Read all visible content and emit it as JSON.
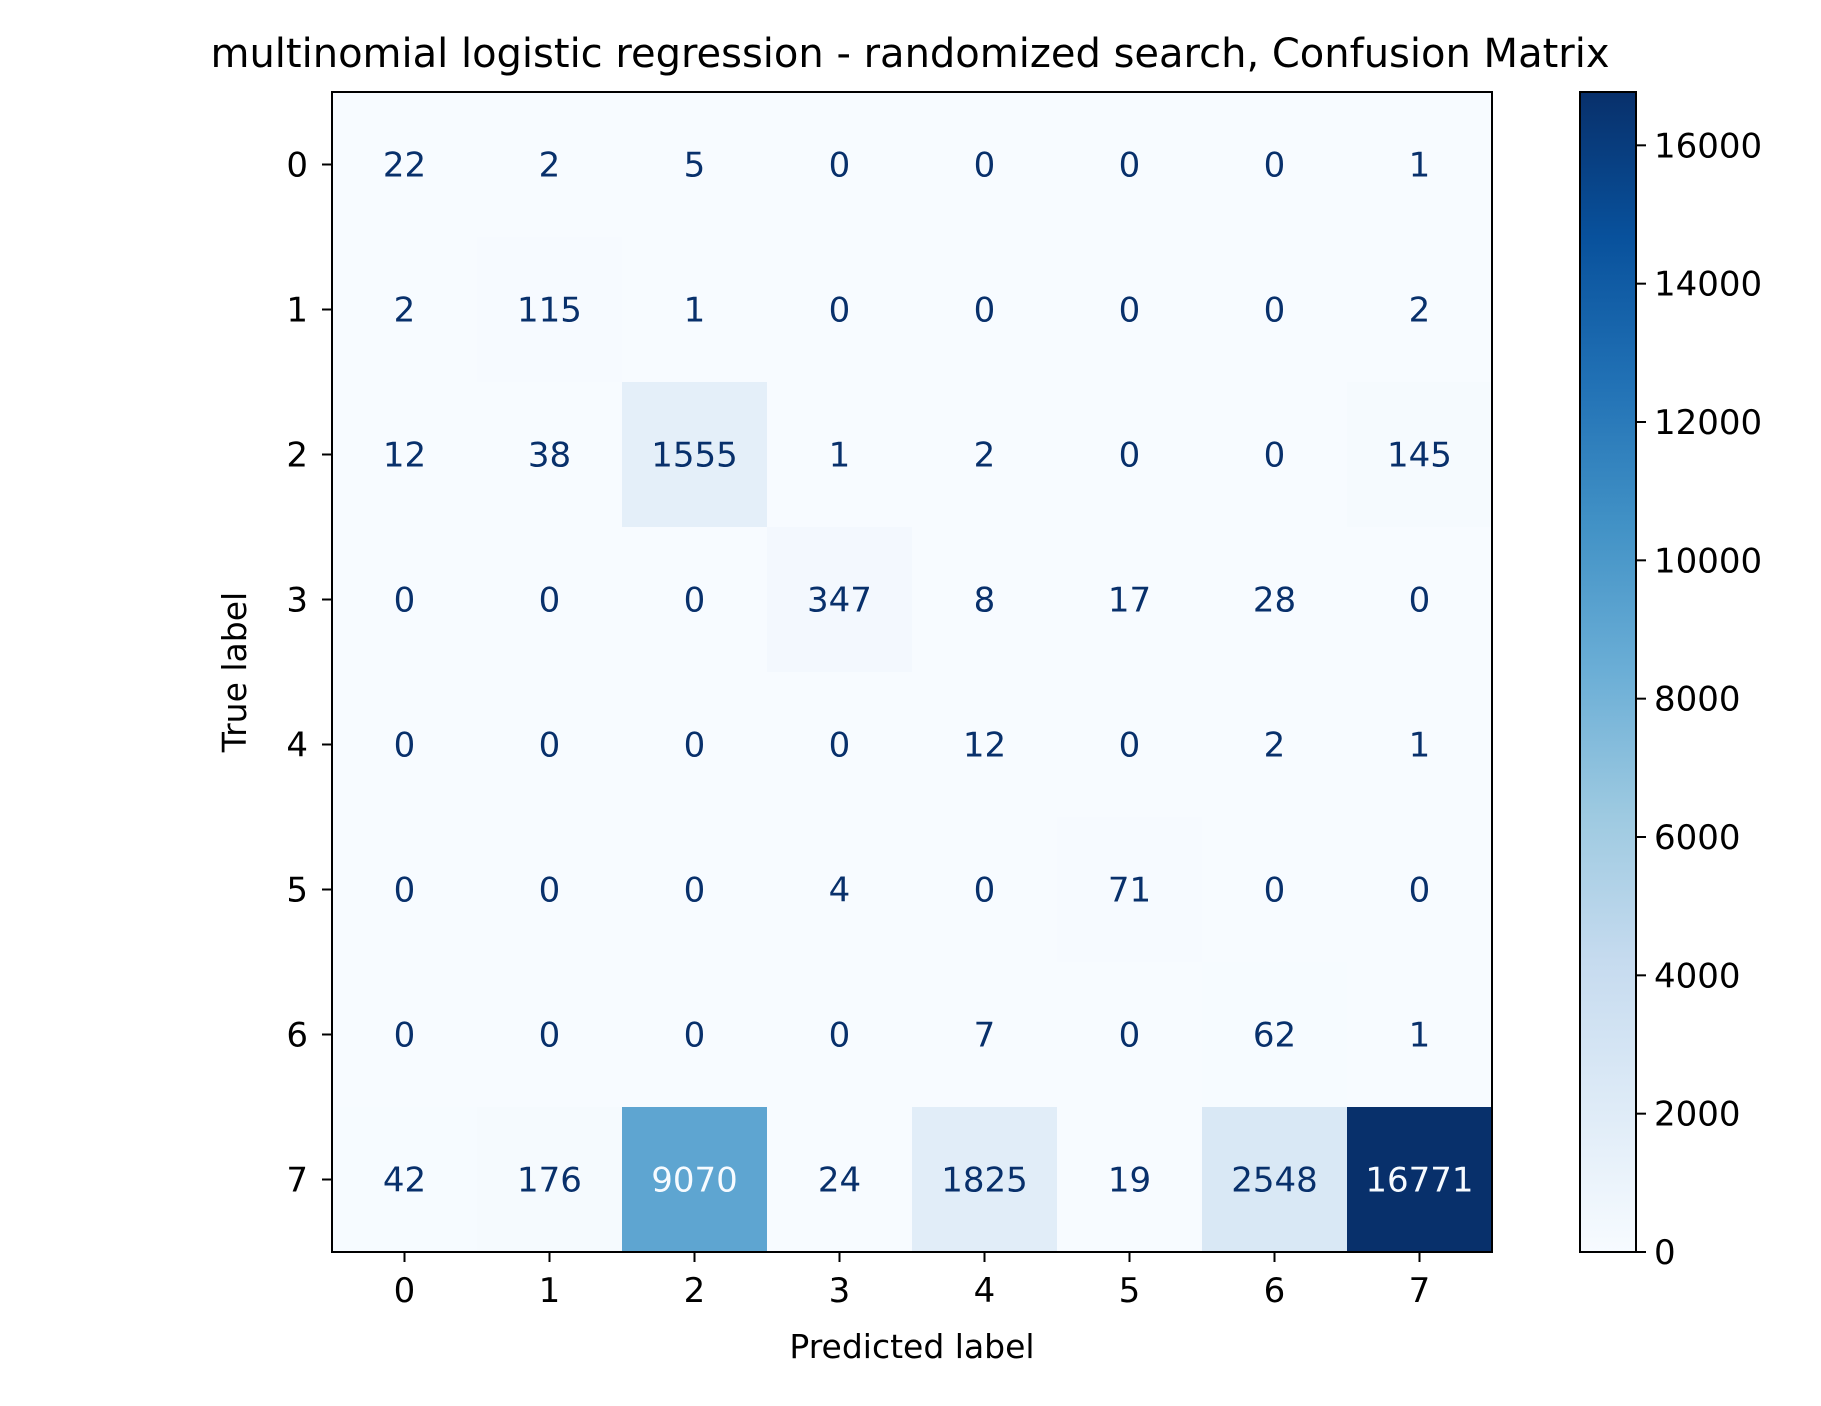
{
  "chart_data": {
    "type": "heatmap",
    "title": "multinomial logistic regression - randomized search, Confusion Matrix",
    "xlabel": "Predicted label",
    "ylabel": "True label",
    "x_categories": [
      "0",
      "1",
      "2",
      "3",
      "4",
      "5",
      "6",
      "7"
    ],
    "y_categories": [
      "0",
      "1",
      "2",
      "3",
      "4",
      "5",
      "6",
      "7"
    ],
    "values": [
      [
        22,
        2,
        5,
        0,
        0,
        0,
        0,
        1
      ],
      [
        2,
        115,
        1,
        0,
        0,
        0,
        0,
        2
      ],
      [
        12,
        38,
        1555,
        1,
        2,
        0,
        0,
        145
      ],
      [
        0,
        0,
        0,
        347,
        8,
        17,
        28,
        0
      ],
      [
        0,
        0,
        0,
        0,
        12,
        0,
        2,
        1
      ],
      [
        0,
        0,
        0,
        4,
        0,
        71,
        0,
        0
      ],
      [
        0,
        0,
        0,
        0,
        7,
        0,
        62,
        1
      ],
      [
        42,
        176,
        9070,
        24,
        1825,
        19,
        2548,
        16771
      ]
    ],
    "colormap": "Blues",
    "colormap_stops": [
      "#f7fbff",
      "#deebf7",
      "#c6dbef",
      "#9ecae1",
      "#6baed6",
      "#4292c6",
      "#2171b5",
      "#08519c",
      "#08306b"
    ],
    "colorbar": {
      "range": [
        0,
        16771
      ],
      "ticks": [
        0,
        2000,
        4000,
        6000,
        8000,
        10000,
        12000,
        14000,
        16000
      ],
      "tick_labels": [
        "0",
        "2000",
        "4000",
        "6000",
        "8000",
        "10000",
        "12000",
        "14000",
        "16000"
      ]
    },
    "grid": false,
    "legend": "none",
    "text_color_dark": "#08306b",
    "text_color_light": "#f7fbff"
  }
}
